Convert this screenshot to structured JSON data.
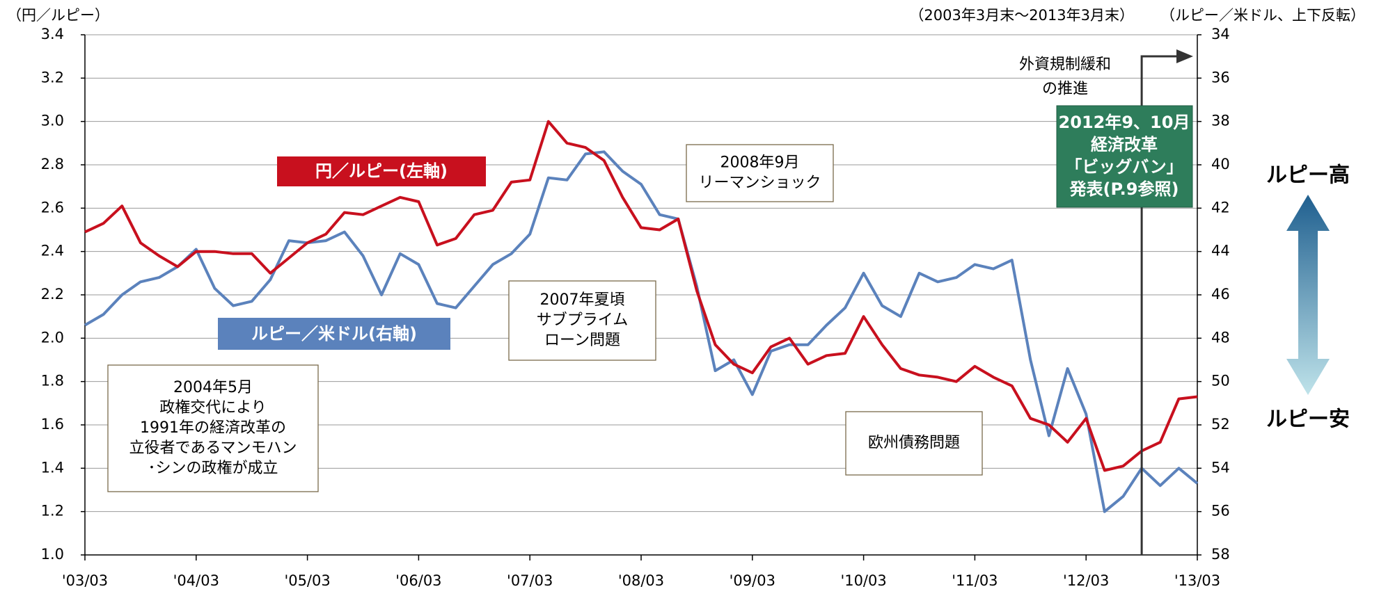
{
  "chart_data": {
    "type": "line",
    "left_unit": "（円／ルピー）",
    "subtitle": "（2003年3月末～2013年3月末）",
    "right_unit": "（ルピー／米ドル、上下反転）",
    "categories": [
      "'03/03",
      null,
      null,
      null,
      null,
      null,
      "'04/03",
      null,
      null,
      null,
      null,
      null,
      "'05/03",
      null,
      null,
      null,
      null,
      null,
      "'06/03",
      null,
      null,
      null,
      null,
      null,
      "'07/03",
      null,
      null,
      null,
      null,
      null,
      "'08/03",
      null,
      null,
      null,
      null,
      null,
      "'09/03",
      null,
      null,
      null,
      null,
      null,
      "'10/03",
      null,
      null,
      null,
      null,
      null,
      "'11/03",
      null,
      null,
      null,
      null,
      null,
      "'12/03",
      null,
      null,
      null,
      null,
      null,
      "'13/03"
    ],
    "ylim": [
      1.0,
      3.4
    ],
    "yticks": [
      {
        "value": 1.0,
        "label": "1.0"
      },
      {
        "value": 1.2,
        "label": "1.2"
      },
      {
        "value": 1.4,
        "label": "1.4"
      },
      {
        "value": 1.6,
        "label": "1.6"
      },
      {
        "value": 1.8,
        "label": "1.8"
      },
      {
        "value": 2.0,
        "label": "2.0"
      },
      {
        "value": 2.2,
        "label": "2.2"
      },
      {
        "value": 2.4,
        "label": "2.4"
      },
      {
        "value": 2.6,
        "label": "2.6"
      },
      {
        "value": 2.8,
        "label": "2.8"
      },
      {
        "value": 3.0,
        "label": "3.0"
      },
      {
        "value": 3.2,
        "label": "3.2"
      },
      {
        "value": 3.4,
        "label": "3.4"
      }
    ],
    "y2lim": [
      34,
      58
    ],
    "y2ticks": [
      34,
      36,
      38,
      40,
      42,
      44,
      46,
      48,
      50,
      52,
      54,
      56,
      58
    ],
    "y2_inverted": true,
    "grid": true,
    "series": [
      {
        "name": "円／ルピー(左軸)",
        "color": "#c8101e",
        "values": [
          2.49,
          2.53,
          2.61,
          2.44,
          2.38,
          2.33,
          2.4,
          2.4,
          2.39,
          2.39,
          2.3,
          2.37,
          2.44,
          2.48,
          2.58,
          2.57,
          2.61,
          2.65,
          2.63,
          2.43,
          2.46,
          2.57,
          2.59,
          2.72,
          2.73,
          3.0,
          2.9,
          2.88,
          2.82,
          2.65,
          2.51,
          2.5,
          2.55,
          2.22,
          1.97,
          1.88,
          1.84,
          1.96,
          2.0,
          1.88,
          1.92,
          1.93,
          2.1,
          1.97,
          1.86,
          1.83,
          1.82,
          1.8,
          1.87,
          1.82,
          1.78,
          1.63,
          1.6,
          1.52,
          1.63,
          1.39,
          1.41,
          1.48,
          1.52,
          1.72,
          1.73
        ]
      },
      {
        "name": "ルピー／米ドル(右軸)",
        "color": "#5b82bc",
        "axis": "y2",
        "values": [
          47.4,
          46.9,
          46.0,
          45.4,
          45.2,
          44.7,
          43.9,
          45.7,
          46.5,
          46.3,
          45.3,
          43.5,
          43.6,
          43.5,
          43.1,
          44.2,
          46.0,
          44.1,
          44.6,
          46.4,
          46.6,
          45.6,
          44.6,
          44.1,
          43.2,
          40.6,
          40.7,
          39.5,
          39.4,
          40.3,
          40.9,
          42.3,
          42.5,
          45.6,
          49.5,
          49.0,
          50.6,
          48.6,
          48.3,
          48.3,
          47.4,
          46.6,
          45.0,
          46.5,
          47.0,
          45.0,
          45.4,
          45.2,
          44.6,
          44.8,
          44.4,
          49.0,
          52.5,
          49.4,
          51.5,
          56.0,
          55.3,
          54.0,
          54.8,
          54.0,
          54.7
        ]
      }
    ],
    "annotations": {
      "event_2004": [
        "2004年5月",
        "政権交代により",
        "1991年の経済改革の",
        "立役者であるマンモハン",
        "･シンの政権が成立"
      ],
      "event_2007": [
        "2007年夏頃",
        "サブプライム",
        "ローン問題"
      ],
      "event_2008": [
        "2008年9月",
        "リーマンショック"
      ],
      "event_euro": [
        "欧州債務問題"
      ],
      "reform": [
        "外資規制緩和",
        "の推進"
      ],
      "bigbang": [
        "2012年9、10月",
        "経済改革",
        "「ビッグバン」",
        "発表(P.9参照)"
      ],
      "rupee_high": "ルピー高",
      "rupee_low": "ルピー安"
    }
  }
}
